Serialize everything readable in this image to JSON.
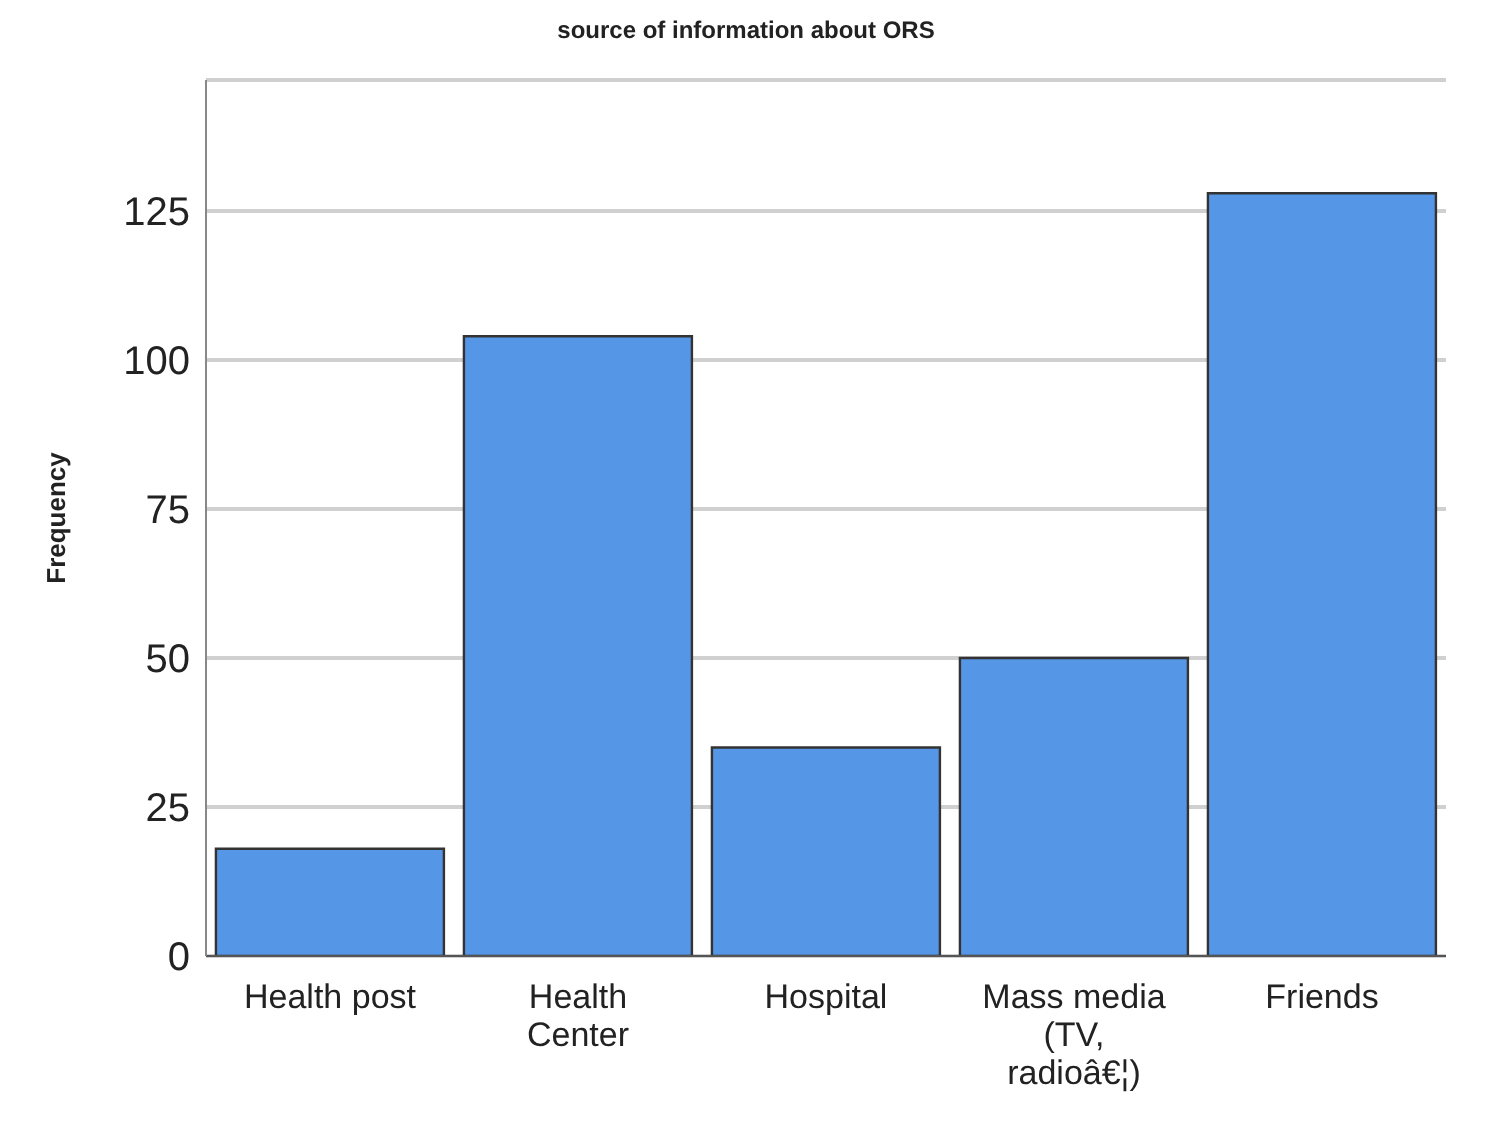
{
  "chart_data": {
    "type": "bar",
    "title": "source of information about ORS",
    "ylabel": "Frequency",
    "categories": [
      "Health post",
      "Health Center",
      "Hospital",
      "Mass media (TV, radioâ€¦)",
      "Friends"
    ],
    "values": [
      18,
      104,
      35,
      50,
      128
    ],
    "color": "#5596e6",
    "ylim": [
      0,
      147
    ],
    "yticks": [
      0,
      25,
      50,
      75,
      100,
      125
    ],
    "grid": "y",
    "legend": false
  }
}
